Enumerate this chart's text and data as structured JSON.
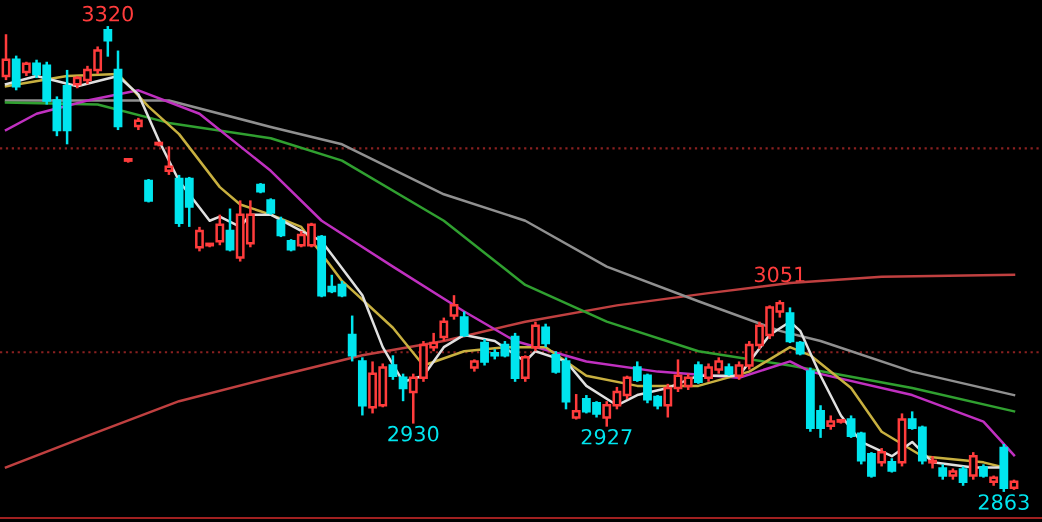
{
  "chart_data": {
    "type": "candlestick",
    "categories": [
      null,
      null,
      null,
      null,
      null,
      null,
      null,
      null,
      null,
      null,
      null,
      null,
      null,
      null,
      null,
      null,
      null,
      null,
      null,
      null,
      null,
      null,
      null,
      null,
      null,
      null,
      null,
      null,
      null,
      null,
      null,
      null,
      null,
      null,
      null,
      null,
      null,
      null,
      null,
      null,
      null,
      null,
      null,
      null,
      null,
      null,
      null,
      null,
      null,
      null,
      null,
      null,
      null,
      null,
      null,
      null,
      null,
      null,
      null,
      null,
      null,
      null,
      null,
      null,
      null,
      null,
      null,
      null,
      null,
      null,
      null,
      null,
      null,
      null,
      null,
      null,
      null,
      null,
      null,
      null,
      null,
      null,
      null,
      null,
      null,
      null,
      null,
      null,
      null,
      null,
      null,
      null,
      null,
      null,
      null,
      null,
      null,
      null,
      null,
      null
    ],
    "colors": [
      "#ff3c3c",
      "#00e5ee",
      "#ff3c3c",
      "#00e5ee",
      "#00e5ee",
      "#00e5ee",
      "#00e5ee",
      "#ff3c3c",
      "#ff3c3c",
      "#ff3c3c",
      "#00e5ee",
      "#00e5ee",
      "#ff3c3c",
      "#ff3c3c",
      "#00e5ee",
      "#ff3c3c",
      "#ff3c3c",
      "#00e5ee",
      "#00e5ee",
      "#ff3c3c",
      "#ff3c3c",
      "#ff3c3c",
      "#00e5ee",
      "#ff3c3c",
      "#ff3c3c",
      "#00e5ee",
      "#00e5ee",
      "#00e5ee",
      "#00e5ee",
      "#ff3c3c",
      "#ff3c3c",
      "#00e5ee",
      "#00e5ee",
      "#00e5ee",
      "#00e5ee",
      "#00e5ee",
      "#ff3c3c",
      "#ff3c3c",
      "#00e5ee",
      "#00e5ee",
      "#ff3c3c",
      "#ff3c3c",
      "#ff3c3c",
      "#ff3c3c",
      "#ff3c3c",
      "#00e5ee",
      "#ff3c3c",
      "#00e5ee",
      "#00e5ee",
      "#00e5ee",
      "#00e5ee",
      "#ff3c3c",
      "#ff3c3c",
      "#00e5ee",
      "#00e5ee",
      "#00e5ee",
      "#ff3c3c",
      "#00e5ee",
      "#00e5ee",
      "#ff3c3c",
      "#ff3c3c",
      "#ff3c3c",
      "#00e5ee",
      "#00e5ee",
      "#00e5ee",
      "#ff3c3c",
      "#ff3c3c",
      "#ff3c3c",
      "#00e5ee",
      "#ff3c3c",
      "#ff3c3c",
      "#00e5ee",
      "#ff3c3c",
      "#ff3c3c",
      "#ff3c3c",
      "#ff3c3c",
      "#ff3c3c",
      "#00e5ee",
      "#00e5ee",
      "#00e5ee",
      "#00e5ee",
      "#ff3c3c",
      "#ff3c3c",
      "#00e5ee",
      "#00e5ee",
      "#00e5ee",
      "#ff3c3c",
      "#00e5ee",
      "#ff3c3c",
      "#00e5ee",
      "#00e5ee",
      "#ff3c3c",
      "#00e5ee",
      "#ff3c3c",
      "#00e5ee",
      "#ff3c3c",
      "#00e5ee",
      "#ff3c3c",
      "#00e5ee",
      "#ff3c3c"
    ],
    "ohlc": [
      [
        3271,
        3312,
        3267,
        3287
      ],
      [
        3287,
        3291,
        3257,
        3261
      ],
      [
        3275,
        3285,
        3271,
        3283
      ],
      [
        3283,
        3287,
        3269,
        3273
      ],
      [
        3281,
        3285,
        3243,
        3247
      ],
      [
        3247,
        3251,
        3212,
        3218
      ],
      [
        3261,
        3277,
        3204,
        3218
      ],
      [
        3263,
        3271,
        3259,
        3269
      ],
      [
        3267,
        3281,
        3263,
        3277
      ],
      [
        3277,
        3300,
        3273,
        3296
      ],
      [
        3316,
        3320,
        3290,
        3306
      ],
      [
        3277,
        3296,
        3218,
        3222
      ],
      [
        3188,
        3190,
        3186,
        3188
      ],
      [
        3222,
        3230,
        3218,
        3227
      ],
      [
        3168,
        3170,
        3147,
        3149
      ],
      [
        3204,
        3206,
        3202,
        3204
      ],
      [
        3178,
        3202,
        3174,
        3182
      ],
      [
        3170,
        3174,
        3123,
        3127
      ],
      [
        3170,
        3172,
        3123,
        3143
      ],
      [
        3103,
        3123,
        3099,
        3119
      ],
      [
        3105,
        3107,
        3103,
        3105
      ],
      [
        3109,
        3135,
        3105,
        3125
      ],
      [
        3119,
        3141,
        3099,
        3101
      ],
      [
        3093,
        3149,
        3089,
        3135
      ],
      [
        3107,
        3149,
        3103,
        3135
      ],
      [
        3164,
        3166,
        3156,
        3158
      ],
      [
        3149,
        3151,
        3135,
        3137
      ],
      [
        3129,
        3133,
        3113,
        3115
      ],
      [
        3109,
        3111,
        3099,
        3101
      ],
      [
        3105,
        3119,
        3103,
        3115
      ],
      [
        3105,
        3127,
        3103,
        3125
      ],
      [
        3113,
        3115,
        3054,
        3056
      ],
      [
        3064,
        3076,
        3058,
        3060
      ],
      [
        3066,
        3070,
        3054,
        3056
      ],
      [
        3017,
        3036,
        2991,
        2997
      ],
      [
        2991,
        2995,
        2938,
        2948
      ],
      [
        2946,
        2991,
        2940,
        2979
      ],
      [
        2948,
        2989,
        2946,
        2985
      ],
      [
        2987,
        2997,
        2973,
        2977
      ],
      [
        2975,
        2979,
        2952,
        2965
      ],
      [
        2961,
        2979,
        2930,
        2975
      ],
      [
        2975,
        3011,
        2971,
        3007
      ],
      [
        3005,
        3019,
        3001,
        3009
      ],
      [
        3015,
        3034,
        3011,
        3030
      ],
      [
        3036,
        3056,
        3032,
        3046
      ],
      [
        3034,
        3040,
        3015,
        3017
      ],
      [
        2985,
        2993,
        2981,
        2991
      ],
      [
        3009,
        3013,
        2987,
        2991
      ],
      [
        2999,
        3003,
        2993,
        2997
      ],
      [
        3007,
        3011,
        2995,
        2997
      ],
      [
        3015,
        3019,
        2971,
        2975
      ],
      [
        2975,
        2997,
        2971,
        2995
      ],
      [
        3005,
        3030,
        3001,
        3026
      ],
      [
        3024,
        3028,
        3005,
        3009
      ],
      [
        2997,
        3001,
        2979,
        2981
      ],
      [
        2991,
        2995,
        2944,
        2952
      ],
      [
        2936,
        2959,
        2934,
        2942
      ],
      [
        2954,
        2958,
        2940,
        2942
      ],
      [
        2950,
        2952,
        2936,
        2940
      ],
      [
        2936,
        2952,
        2927,
        2948
      ],
      [
        2948,
        2966,
        2944,
        2961
      ],
      [
        2958,
        2977,
        2954,
        2975
      ],
      [
        2985,
        2991,
        2971,
        2973
      ],
      [
        2977,
        2979,
        2950,
        2954
      ],
      [
        2956,
        2958,
        2944,
        2948
      ],
      [
        2948,
        2969,
        2936,
        2965
      ],
      [
        2965,
        2993,
        2961,
        2977
      ],
      [
        2967,
        2979,
        2963,
        2975
      ],
      [
        2987,
        2991,
        2969,
        2971
      ],
      [
        2975,
        2989,
        2971,
        2985
      ],
      [
        2983,
        2995,
        2979,
        2991
      ],
      [
        2985,
        2989,
        2977,
        2979
      ],
      [
        2977,
        2991,
        2973,
        2987
      ],
      [
        2987,
        3011,
        2983,
        3007
      ],
      [
        3007,
        3030,
        3003,
        3026
      ],
      [
        3017,
        3046,
        3013,
        3044
      ],
      [
        3040,
        3051,
        3034,
        3048
      ],
      [
        3038,
        3044,
        3009,
        3011
      ],
      [
        3009,
        3011,
        2997,
        2999
      ],
      [
        2981,
        2985,
        2922,
        2926
      ],
      [
        2942,
        2948,
        2916,
        2926
      ],
      [
        2928,
        2938,
        2924,
        2932
      ],
      [
        2932,
        2934,
        2930,
        2932
      ],
      [
        2934,
        2938,
        2916,
        2918
      ],
      [
        2920,
        2922,
        2890,
        2894
      ],
      [
        2900,
        2902,
        2877,
        2879
      ],
      [
        2892,
        2906,
        2888,
        2902
      ],
      [
        2892,
        2896,
        2882,
        2884
      ],
      [
        2892,
        2940,
        2888,
        2934
      ],
      [
        2934,
        2942,
        2924,
        2926
      ],
      [
        2926,
        2928,
        2890,
        2894
      ],
      [
        2892,
        2898,
        2886,
        2892
      ],
      [
        2886,
        2890,
        2875,
        2879
      ],
      [
        2879,
        2886,
        2875,
        2883
      ],
      [
        2885,
        2888,
        2869,
        2873
      ],
      [
        2879,
        2902,
        2875,
        2898
      ],
      [
        2887,
        2890,
        2877,
        2879
      ],
      [
        2873,
        2879,
        2869,
        2877
      ],
      [
        2906,
        2910,
        2863,
        2867
      ],
      [
        2867,
        2875,
        2865,
        2873
      ]
    ],
    "series": [
      {
        "type": "line",
        "color": "#c04040",
        "values": [
          2887,
          null,
          null,
          null,
          null,
          null,
          null,
          null,
          2918,
          null,
          null,
          null,
          null,
          null,
          null,
          null,
          null,
          2952,
          null,
          null,
          null,
          null,
          null,
          null,
          null,
          null,
          2975,
          null,
          null,
          null,
          null,
          null,
          null,
          null,
          null,
          2997,
          null,
          null,
          null,
          null,
          null,
          null,
          null,
          3011,
          null,
          null,
          null,
          null,
          null,
          null,
          null,
          3030,
          null,
          null,
          null,
          null,
          null,
          null,
          null,
          null,
          3046,
          null,
          null,
          null,
          null,
          null,
          null,
          null,
          null,
          3058,
          null,
          null,
          null,
          null,
          null,
          null,
          null,
          3068,
          null,
          null,
          null,
          null,
          null,
          null,
          null,
          null,
          3074,
          null,
          null,
          null,
          null,
          null,
          null,
          null,
          null,
          null,
          null,
          null,
          null,
          3076
        ]
      },
      {
        "type": "line",
        "color": "#909090",
        "values": [
          3247,
          null,
          null,
          null,
          null,
          null,
          null,
          null,
          null,
          null,
          null,
          null,
          null,
          null,
          null,
          null,
          3247,
          null,
          null,
          null,
          null,
          null,
          null,
          null,
          null,
          null,
          3221,
          null,
          null,
          null,
          null,
          null,
          null,
          3204,
          null,
          null,
          null,
          null,
          null,
          null,
          null,
          null,
          null,
          3155,
          null,
          null,
          null,
          null,
          null,
          null,
          null,
          3129,
          null,
          null,
          null,
          null,
          null,
          null,
          null,
          3084,
          null,
          null,
          null,
          null,
          null,
          null,
          null,
          null,
          3050,
          null,
          null,
          null,
          null,
          null,
          null,
          null,
          3021,
          null,
          null,
          null,
          3011,
          null,
          null,
          null,
          null,
          null,
          null,
          null,
          null,
          2981,
          null,
          null,
          null,
          null,
          null,
          null,
          null,
          null,
          null,
          2958
        ]
      },
      {
        "type": "line",
        "color": "#30a030",
        "values": [
          3245,
          null,
          null,
          null,
          null,
          null,
          null,
          null,
          null,
          3243,
          null,
          null,
          null,
          null,
          null,
          null,
          3225,
          null,
          null,
          null,
          null,
          null,
          null,
          null,
          null,
          null,
          3210,
          null,
          null,
          null,
          null,
          null,
          null,
          3188,
          null,
          null,
          null,
          null,
          null,
          null,
          null,
          null,
          null,
          3129,
          null,
          null,
          null,
          null,
          null,
          null,
          null,
          3066,
          null,
          null,
          null,
          null,
          null,
          null,
          null,
          3030,
          null,
          null,
          null,
          null,
          null,
          null,
          null,
          null,
          3001,
          null,
          null,
          null,
          null,
          null,
          null,
          null,
          null,
          2987,
          null,
          null,
          null,
          null,
          null,
          null,
          null,
          null,
          null,
          null,
          null,
          2965,
          null,
          null,
          null,
          null,
          null,
          null,
          null,
          null,
          null,
          2942
        ]
      },
      {
        "type": "line",
        "color": "#c030c0",
        "values": [
          3218,
          null,
          null,
          3234,
          null,
          null,
          null,
          null,
          3247,
          null,
          null,
          null,
          null,
          3257,
          null,
          null,
          null,
          null,
          null,
          3234,
          null,
          null,
          null,
          null,
          null,
          null,
          3178,
          null,
          null,
          null,
          null,
          3129,
          null,
          null,
          null,
          null,
          null,
          null,
          3084,
          null,
          null,
          null,
          null,
          null,
          null,
          3040,
          null,
          null,
          null,
          null,
          3011,
          null,
          null,
          null,
          null,
          null,
          null,
          2991,
          null,
          null,
          null,
          null,
          null,
          null,
          2981,
          null,
          null,
          null,
          null,
          null,
          null,
          null,
          2975,
          null,
          null,
          null,
          null,
          2991,
          null,
          2981,
          null,
          null,
          null,
          null,
          null,
          null,
          null,
          null,
          null,
          2958,
          null,
          null,
          null,
          null,
          null,
          null,
          2932,
          null,
          null,
          2899
        ]
      },
      {
        "type": "line",
        "color": "#c8b040",
        "values": [
          3261,
          null,
          null,
          null,
          null,
          null,
          3271,
          null,
          null,
          null,
          null,
          3273,
          null,
          null,
          3241,
          null,
          null,
          3214,
          null,
          null,
          null,
          3162,
          null,
          3145,
          null,
          null,
          3135,
          null,
          null,
          3123,
          null,
          null,
          null,
          3070,
          null,
          null,
          null,
          null,
          3024,
          null,
          null,
          2987,
          null,
          null,
          null,
          3001,
          null,
          null,
          null,
          3005,
          null,
          null,
          null,
          3005,
          null,
          null,
          null,
          2977,
          null,
          null,
          null,
          null,
          2967,
          null,
          null,
          null,
          null,
          null,
          2967,
          null,
          null,
          null,
          null,
          2981,
          null,
          null,
          null,
          3005,
          null,
          2997,
          null,
          null,
          null,
          2965,
          null,
          null,
          2922,
          null,
          null,
          null,
          2898,
          null,
          null,
          null,
          null,
          null,
          2892,
          null,
          2887,
          null
        ]
      },
      {
        "type": "line",
        "color": "#e0e0e0",
        "values": [
          3263,
          null,
          null,
          3271,
          null,
          null,
          null,
          3261,
          null,
          null,
          null,
          3271,
          null,
          3253,
          null,
          3208,
          null,
          3168,
          null,
          null,
          3129,
          3133,
          null,
          3123,
          3135,
          null,
          3135,
          null,
          null,
          3119,
          null,
          3109,
          null,
          null,
          null,
          3056,
          null,
          3005,
          null,
          2971,
          null,
          2977,
          null,
          3005,
          null,
          3017,
          null,
          null,
          3011,
          null,
          null,
          2991,
          3001,
          null,
          null,
          2991,
          null,
          2967,
          null,
          null,
          2948,
          null,
          2958,
          null,
          null,
          2965,
          null,
          null,
          2977,
          null,
          null,
          null,
          2977,
          null,
          null,
          3017,
          null,
          3030,
          3021,
          null,
          2977,
          null,
          2938,
          null,
          2912,
          null,
          null,
          2898,
          null,
          2912,
          null,
          2892,
          null,
          null,
          null,
          2887,
          null,
          null,
          2887,
          null
        ]
      }
    ],
    "ref_lines": [
      {
        "axis": "y",
        "value": 3200,
        "color": "#8a2020",
        "line_style": "dotted"
      },
      {
        "axis": "y",
        "value": 3000,
        "color": "#8a2020",
        "line_style": "dotted"
      }
    ],
    "annotations": [
      {
        "text": "3320",
        "y": 3320
      },
      {
        "text": "2930",
        "y": 2930
      },
      {
        "text": "2927",
        "y": 2927
      },
      {
        "text": "3051",
        "y": 3051
      },
      {
        "text": "2863",
        "y": 2863
      }
    ]
  }
}
